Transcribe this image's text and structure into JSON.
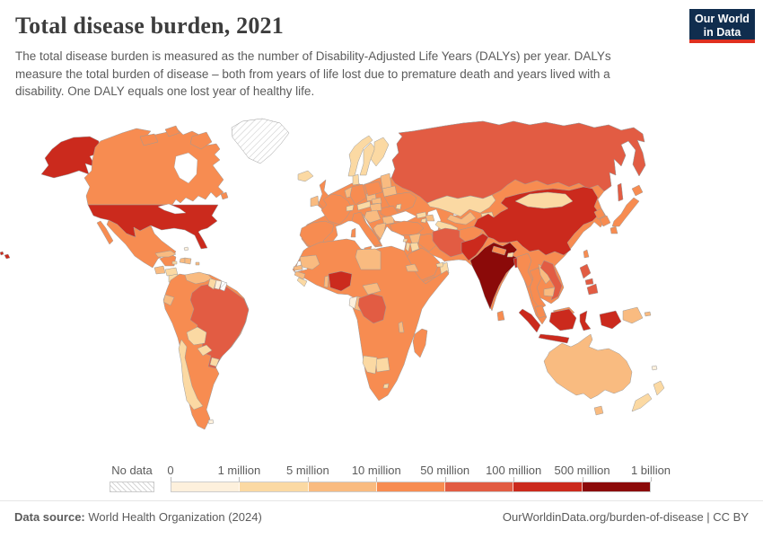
{
  "header": {
    "title": "Total disease burden, 2021",
    "subtitle_lines": [
      "The total disease burden is measured as the number of Disability-Adjusted Life Years (DALYs) per year. DALYs",
      "measure the total burden of disease – both from years of life lost due to premature death and years lived with a",
      "disability. One DALY equals one lost year of healthy life."
    ]
  },
  "logo": {
    "line1": "Our World",
    "line2": "in Data"
  },
  "legend": {
    "no_data_label": "No data",
    "tick_labels": [
      "0",
      "1 million",
      "5 million",
      "10 million",
      "50 million",
      "100 million",
      "500 million",
      "1 billion"
    ],
    "bin_colors": [
      "#fdf0dc",
      "#fbd9a3",
      "#f9bb80",
      "#f78c51",
      "#e25c43",
      "#cb2a1d",
      "#8b0a09"
    ]
  },
  "footer": {
    "source_label": "Data source:",
    "source": "World Health Organization (2024)",
    "right": "OurWorldinData.org/burden-of-disease | CC BY"
  },
  "chart_data": {
    "type": "choropleth_map",
    "title": "Total disease burden, 2021",
    "unit": "Disability-Adjusted Life Years (DALYs) per year",
    "bin_ranges": [
      "0-1 million",
      "1-5 million",
      "5-10 million",
      "10-50 million",
      "50-100 million",
      "100-500 million",
      "500 million-1 billion"
    ],
    "countries": {
      "united-states": 5,
      "canada": 3,
      "greenland": -1,
      "mexico": 3,
      "guatemala": 2,
      "honduras": 1,
      "nicaragua": 1,
      "costa-rica": 1,
      "panama": 1,
      "cuba": 2,
      "haiti": 2,
      "dominican-republic": 2,
      "jamaica": 1,
      "puerto-rico": 2,
      "bahamas": 0,
      "colombia": 3,
      "venezuela": 2,
      "guyana": 1,
      "suriname": 0,
      "french-guiana": -1,
      "ecuador": 2,
      "peru": 3,
      "brazil": 4,
      "bolivia": 1,
      "paraguay": 1,
      "chile": 1,
      "argentina": 3,
      "uruguay": 1,
      "falkland-islands": 0,
      "iceland": 1,
      "united-kingdom": 3,
      "ireland": 2,
      "norway": 1,
      "sweden": 1,
      "finland": 1,
      "denmark": 1,
      "baltic-states": 2,
      "poland": 3,
      "germany": 3,
      "benelux": 2,
      "france": 3,
      "spain": 3,
      "italy": 3,
      "switzerland": 1,
      "austria": 1,
      "czechia": 2,
      "slovakia": 2,
      "hungary": 2,
      "balkans": 2,
      "romania": 3,
      "bulgaria": 2,
      "greece": 2,
      "ukraine": 3,
      "belarus": 2,
      "moldova": 1,
      "eurasia-mainland": 3,
      "russia": 4,
      "kazakhstan": 1,
      "uzbekistan": 2,
      "turkmenistan": 1,
      "kyrgyzstan": 1,
      "tajikistan": 2,
      "georgia": 1,
      "azerbaijan": 2,
      "armenia": 1,
      "turkey": 3,
      "cyprus": 1,
      "syria": 2,
      "iraq": 3,
      "iran": 4,
      "saudi-arabia": 3,
      "jordan": 1,
      "israel": 1,
      "yemen": 3,
      "oman": 1,
      "uae": 1,
      "afghanistan": 3,
      "pakistan": 5,
      "india": 6,
      "nepal": 3,
      "bhutan": 1,
      "bangladesh": 5,
      "sri-lanka": 3,
      "china": 5,
      "mongolia": 1,
      "north-korea": 3,
      "south-korea": 3,
      "japan": 3,
      "taiwan": 3,
      "myanmar": 3,
      "thailand": 3,
      "laos": 2,
      "vietnam": 4,
      "cambodia": 2,
      "malaysia": 3,
      "indonesia": 5,
      "philippines": 4,
      "papua-new-guinea": 2,
      "australia": 2,
      "new-zealand": 1,
      "fiji": 0,
      "morocco": 3,
      "western-sahara": -1,
      "algeria": 3,
      "tunisia": 2,
      "libya": 2,
      "egypt": 3,
      "mauritania": 2,
      "senegal": 2,
      "guinea": 2,
      "sierra-leone": 1,
      "liberia": 1,
      "mali": 3,
      "burkina-faso": 3,
      "ivory-coast": 3,
      "ghana": 3,
      "togo": 1,
      "benin": 2,
      "niger": 3,
      "nigeria": 5,
      "chad": 3,
      "sudan": 3,
      "eritrea": 2,
      "ethiopia": 3,
      "somalia": 3,
      "cameroon": 3,
      "central-african-republic": 2,
      "south-sudan": 3,
      "uganda": 3,
      "kenya": 3,
      "dr-congo": 4,
      "congo": 2,
      "gabon": 0,
      "tanzania": 3,
      "angola": 3,
      "zambia": 3,
      "malawi": 2,
      "mozambique": 3,
      "zimbabwe": 3,
      "botswana": 1,
      "namibia": 1,
      "south-africa": 3,
      "lesotho": 1,
      "madagascar": 3,
      "africa-mainland": 3
    },
    "no_data_regions": [
      "Greenland",
      "Western Sahara",
      "French Guiana"
    ]
  }
}
